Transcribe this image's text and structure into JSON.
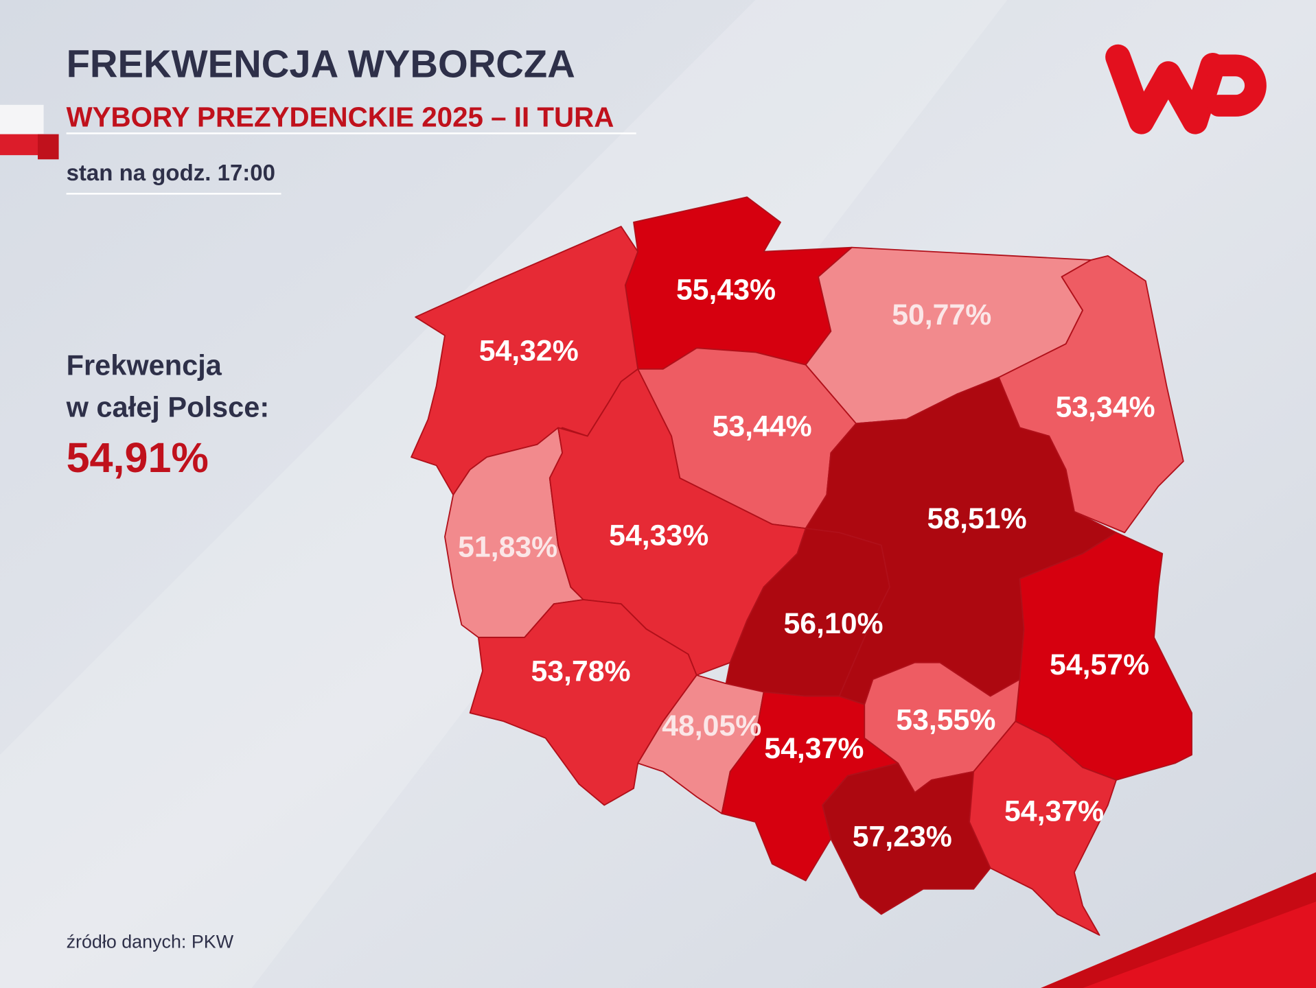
{
  "header": {
    "title": "FREKWENCJA WYBORCZA",
    "subtitle": "WYBORY PREZYDENCKIE 2025 – II TURA",
    "time_note": "stan na godz. 17:00"
  },
  "national": {
    "label_line1": "Frekwencja",
    "label_line2": "w całej Polsce:",
    "value": "54,91%"
  },
  "source": "źródło danych: PKW",
  "regions": [
    {
      "label": "55,43%",
      "color": "#d6000f"
    },
    {
      "label": "54,32%",
      "color": "#e62a35"
    },
    {
      "label": "50,77%",
      "color": "#f28a8d"
    },
    {
      "label": "53,34%",
      "color": "#ee5c63"
    },
    {
      "label": "53,44%",
      "color": "#ee5c63"
    },
    {
      "label": "51,83%",
      "color": "#f28a8d"
    },
    {
      "label": "54,33%",
      "color": "#e62a35"
    },
    {
      "label": "58,51%",
      "color": "#ad0810"
    },
    {
      "label": "56,10%",
      "color": "#ad0810"
    },
    {
      "label": "54,57%",
      "color": "#d6000f"
    },
    {
      "label": "53,78%",
      "color": "#e62a35"
    },
    {
      "label": "48,05%",
      "color": "#f28a8d"
    },
    {
      "label": "54,37%",
      "color": "#d6000f"
    },
    {
      "label": "53,55%",
      "color": "#ee5c63"
    },
    {
      "label": "57,23%",
      "color": "#ad0810"
    },
    {
      "label": "54,37%",
      "color": "#e62a35"
    }
  ]
}
